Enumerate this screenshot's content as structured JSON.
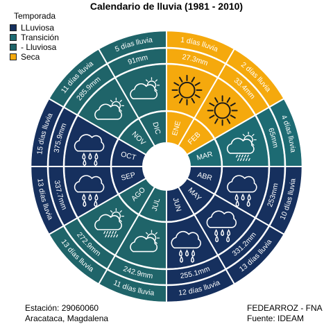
{
  "title": "Calendario de lluvia (1981 - 2010)",
  "legend": {
    "title": "Temporada",
    "items": [
      {
        "label": "LLuviosa",
        "color": "#16305e"
      },
      {
        "label": "Transición",
        "color": "#1d6b73"
      },
      {
        "label": "- Lluviosa",
        "color": "#1f6469"
      },
      {
        "label": "Seca",
        "color": "#f5a90d"
      }
    ]
  },
  "footer": {
    "station": "Estación: 29060060",
    "location": "Aracataca, Magdalena",
    "org": "FEDEARROZ - FNA",
    "source": "Fuente: IDEAM"
  },
  "chart_data": {
    "type": "radial-calendar",
    "months": [
      {
        "month": "ENE",
        "rain": "27.3mm",
        "days": "1 días lluvia",
        "season": "Seca",
        "icon": "sun-icon"
      },
      {
        "month": "FEB",
        "rain": "33.4mm",
        "days": "2 días lluvia",
        "season": "Seca",
        "icon": "sun-icon"
      },
      {
        "month": "MAR",
        "rain": "65mm",
        "days": "4 días lluvia",
        "season": "Transición",
        "icon": "cloud-sun-drizzle-icon"
      },
      {
        "month": "ABR",
        "rain": "253mm",
        "days": "10 días lluvia",
        "season": "LLuviosa",
        "icon": "cloud-rain-icon"
      },
      {
        "month": "MAY",
        "rain": "331.2mm",
        "days": "13 días lluvia",
        "season": "LLuviosa",
        "icon": "cloud-rain-icon"
      },
      {
        "month": "JUN",
        "rain": "255.1mm",
        "days": "12 días lluvia",
        "season": "LLuviosa",
        "icon": "cloud-rain-icon"
      },
      {
        "month": "JUL",
        "rain": "242.9mm",
        "days": "11 días lluvia",
        "season": "- Lluviosa",
        "icon": "cloud-sun-icon"
      },
      {
        "month": "AGO",
        "rain": "272.9mm",
        "days": "13 días lluvia",
        "season": "- Lluviosa",
        "icon": "cloud-drizzle-icon"
      },
      {
        "month": "SEP",
        "rain": "337.7mm",
        "days": "13 días lluvia",
        "season": "LLuviosa",
        "icon": "cloud-rain-icon"
      },
      {
        "month": "OCT",
        "rain": "375.9mm",
        "days": "15 días lluvia",
        "season": "LLuviosa",
        "icon": "cloud-rain-icon"
      },
      {
        "month": "NOV",
        "rain": "285.9mm",
        "days": "11 días lluvia",
        "season": "- Lluviosa",
        "icon": "cloud-sun-icon"
      },
      {
        "month": "DIC",
        "rain": "91mm",
        "days": "5 días lluvia",
        "season": "- Lluviosa",
        "icon": "cloud-sun-icon"
      }
    ]
  }
}
